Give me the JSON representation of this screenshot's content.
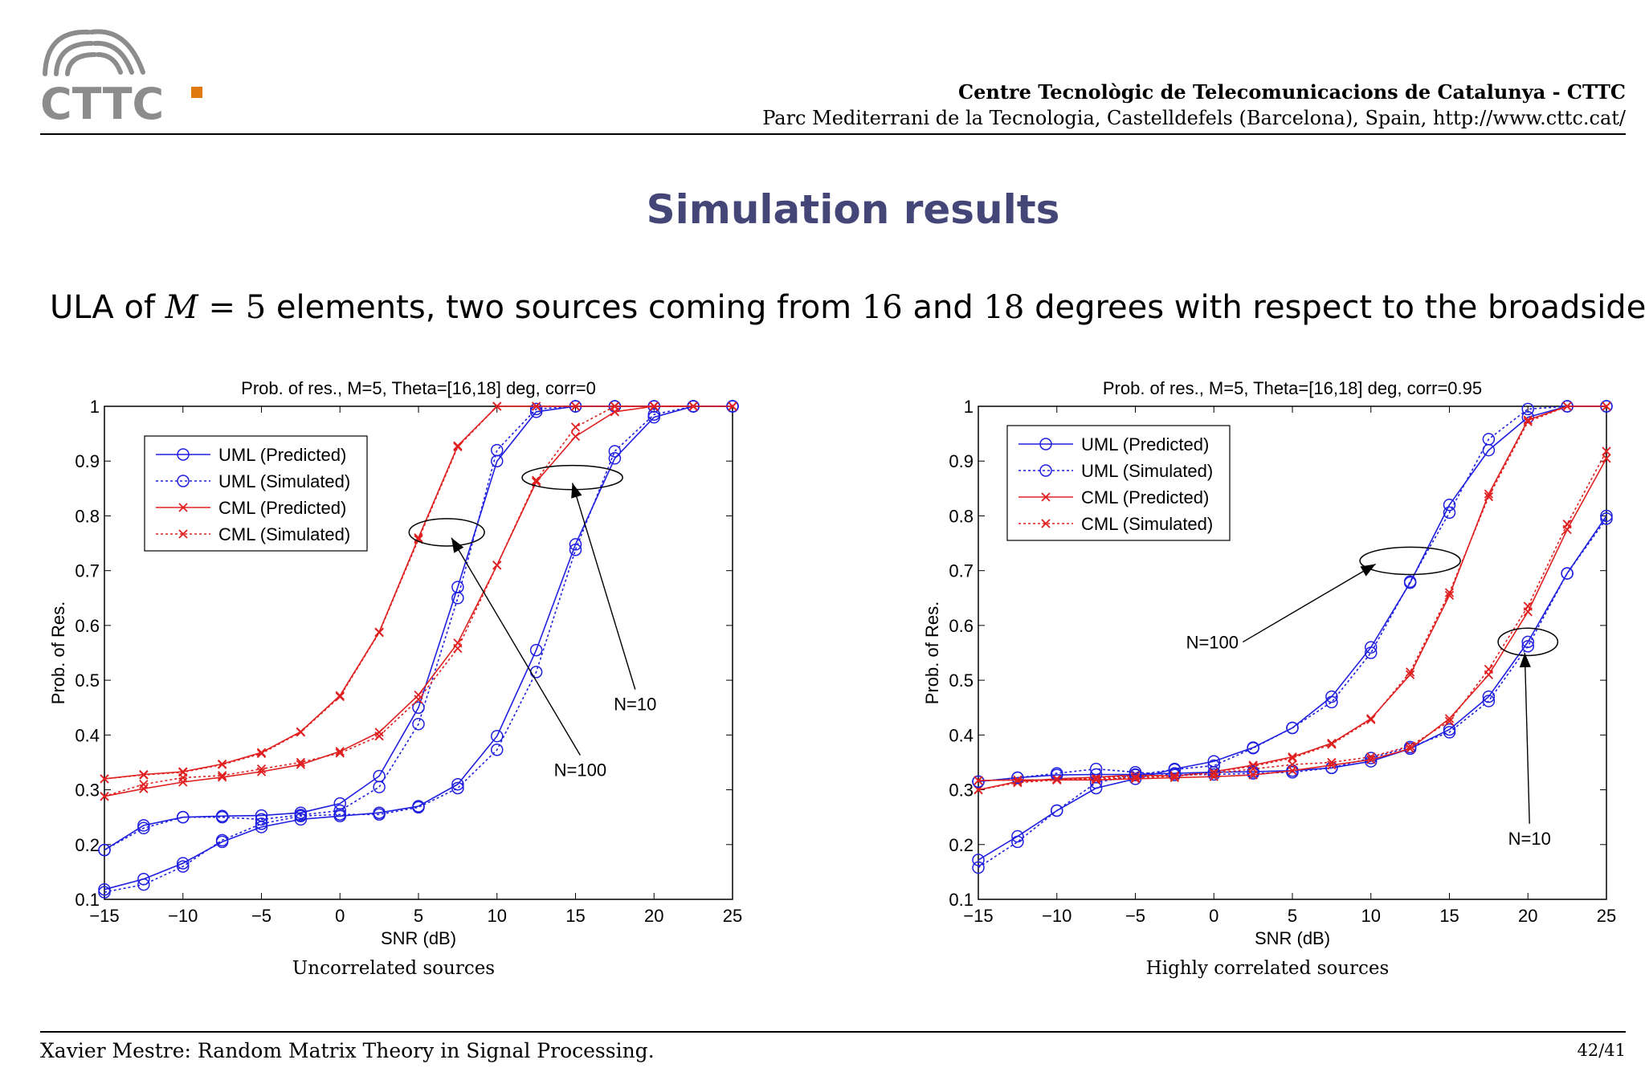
{
  "header": {
    "logo_text": "CTTC",
    "institution": "Centre Tecnològic de Telecomunicacions de Catalunya - CTTC",
    "address": "Parc Mediterrani de la Tecnologia, Castelldefels (Barcelona), Spain, http://www.cttc.cat/"
  },
  "slide": {
    "title": "Simulation results",
    "subtitle_parts": [
      "ULA of ",
      "M",
      " = 5",
      " elements, two sources coming from ",
      "16",
      " and ",
      "18",
      " degrees with respect to the broadside."
    ]
  },
  "captions": [
    "Uncorrelated sources",
    "Highly correlated sources"
  ],
  "footer": {
    "author": "Xavier Mestre: Random Matrix Theory in Signal Processing.",
    "page": "42/41"
  },
  "colors": {
    "blue": "#1f1fe0",
    "red": "#e02020",
    "title": "#434677"
  },
  "chart_data": [
    {
      "type": "line",
      "title": "Prob. of res., M=5, Theta=[16,18] deg, corr=0",
      "xlabel": "SNR (dB)",
      "ylabel": "Prob. of Res.",
      "xlim": [
        -15,
        25
      ],
      "ylim": [
        0.1,
        1
      ],
      "xticks": [
        -15,
        -10,
        -5,
        0,
        5,
        10,
        15,
        20,
        25
      ],
      "yticks": [
        0.1,
        0.2,
        0.3,
        0.4,
        0.5,
        0.6,
        0.7,
        0.8,
        0.9,
        1
      ],
      "grid": false,
      "legend_position": "top-left",
      "legend": [
        "UML (Predicted)",
        "UML (Simulated)",
        "CML (Predicted)",
        "CML (Simulated)"
      ],
      "x": [
        -15,
        -12.5,
        -10,
        -7.5,
        -5,
        -2.5,
        0,
        2.5,
        5,
        7.5,
        10,
        12.5,
        15,
        17.5,
        20,
        22.5,
        25
      ],
      "series": [
        {
          "name": "UML (Predicted)",
          "group": "N=100",
          "values": [
            0.19,
            0.235,
            0.25,
            0.252,
            0.253,
            0.258,
            0.275,
            0.325,
            0.45,
            0.67,
            0.9,
            0.99,
            1,
            1,
            1,
            1,
            1
          ]
        },
        {
          "name": "UML (Simulated)",
          "group": "N=100",
          "values": [
            0.19,
            0.23,
            0.25,
            0.25,
            0.246,
            0.254,
            0.262,
            0.305,
            0.42,
            0.65,
            0.92,
            0.995,
            1,
            1,
            1,
            1,
            1
          ]
        },
        {
          "name": "CML (Predicted)",
          "group": "N=100",
          "values": [
            0.32,
            0.328,
            0.333,
            0.347,
            0.368,
            0.406,
            0.472,
            0.588,
            0.76,
            0.928,
            1,
            1,
            1,
            1,
            1,
            1,
            1
          ]
        },
        {
          "name": "CML (Simulated)",
          "group": "N=100",
          "values": [
            0.32,
            0.327,
            0.332,
            0.346,
            0.366,
            0.405,
            0.47,
            0.587,
            0.757,
            0.926,
            1,
            1,
            1,
            1,
            1,
            1,
            1
          ]
        },
        {
          "name": "UML (Predicted)",
          "group": "N=10",
          "values": [
            0.118,
            0.137,
            0.166,
            0.205,
            0.232,
            0.246,
            0.252,
            0.258,
            0.27,
            0.31,
            0.398,
            0.555,
            0.748,
            0.905,
            0.98,
            1,
            1
          ]
        },
        {
          "name": "UML (Simulated)",
          "group": "N=10",
          "values": [
            0.113,
            0.127,
            0.16,
            0.208,
            0.238,
            0.252,
            0.255,
            0.255,
            0.268,
            0.303,
            0.373,
            0.515,
            0.738,
            0.918,
            0.985,
            1,
            1
          ]
        },
        {
          "name": "CML (Predicted)",
          "group": "N=10",
          "values": [
            0.288,
            0.302,
            0.314,
            0.323,
            0.333,
            0.346,
            0.37,
            0.405,
            0.473,
            0.568,
            0.71,
            0.862,
            0.945,
            0.99,
            1,
            1,
            1
          ]
        },
        {
          "name": "CML (Simulated)",
          "group": "N=10",
          "values": [
            0.288,
            0.31,
            0.322,
            0.326,
            0.338,
            0.35,
            0.367,
            0.398,
            0.465,
            0.558,
            0.71,
            0.865,
            0.962,
            1,
            1,
            1,
            1
          ]
        }
      ],
      "annotations": [
        {
          "text": "N=100",
          "at": [
            15.3,
            0.325
          ],
          "arrow_to": [
            7.1,
            0.76
          ],
          "ellipse": [
            6.8,
            0.77,
            2.4,
            0.025
          ]
        },
        {
          "text": "N=10",
          "at": [
            18.8,
            0.445
          ],
          "arrow_to": [
            14.8,
            0.86
          ],
          "ellipse": [
            14.8,
            0.87,
            3.2,
            0.022
          ]
        }
      ]
    },
    {
      "type": "line",
      "title": "Prob. of res., M=5, Theta=[16,18] deg, corr=0.95",
      "xlabel": "SNR (dB)",
      "ylabel": "Prob. of Res.",
      "xlim": [
        -15,
        25
      ],
      "ylim": [
        0.1,
        1
      ],
      "xticks": [
        -15,
        -10,
        -5,
        0,
        5,
        10,
        15,
        20,
        25
      ],
      "yticks": [
        0.1,
        0.2,
        0.3,
        0.4,
        0.5,
        0.6,
        0.7,
        0.8,
        0.9,
        1
      ],
      "grid": false,
      "legend_position": "top-left",
      "legend": [
        "UML (Predicted)",
        "UML (Simulated)",
        "CML (Predicted)",
        "CML (Simulated)"
      ],
      "x": [
        -15,
        -12.5,
        -10,
        -7.5,
        -5,
        -2.5,
        0,
        2.5,
        5,
        7.5,
        10,
        12.5,
        15,
        17.5,
        20,
        22.5,
        25
      ],
      "series": [
        {
          "name": "UML (Predicted)",
          "group": "N=100",
          "values": [
            0.172,
            0.215,
            0.262,
            0.303,
            0.32,
            0.338,
            0.352,
            0.377,
            0.413,
            0.47,
            0.56,
            0.678,
            0.82,
            0.92,
            0.98,
            1,
            1
          ]
        },
        {
          "name": "UML (Simulated)",
          "group": "N=100",
          "values": [
            0.158,
            0.205,
            0.262,
            0.313,
            0.327,
            0.337,
            0.344,
            0.376,
            0.413,
            0.46,
            0.55,
            0.68,
            0.806,
            0.94,
            0.995,
            1,
            1
          ]
        },
        {
          "name": "CML (Predicted)",
          "group": "N=100",
          "values": [
            0.3,
            0.315,
            0.32,
            0.323,
            0.327,
            0.325,
            0.333,
            0.345,
            0.36,
            0.385,
            0.43,
            0.51,
            0.655,
            0.84,
            0.975,
            1,
            1
          ]
        },
        {
          "name": "CML (Simulated)",
          "group": "N=100",
          "values": [
            0.3,
            0.313,
            0.318,
            0.322,
            0.325,
            0.326,
            0.332,
            0.343,
            0.358,
            0.383,
            0.428,
            0.515,
            0.66,
            0.835,
            0.972,
            1,
            1
          ]
        },
        {
          "name": "UML (Predicted)",
          "group": "N=10",
          "values": [
            0.315,
            0.322,
            0.327,
            0.328,
            0.328,
            0.33,
            0.332,
            0.333,
            0.335,
            0.34,
            0.352,
            0.375,
            0.41,
            0.47,
            0.57,
            0.695,
            0.8
          ]
        },
        {
          "name": "UML (Simulated)",
          "group": "N=10",
          "values": [
            0.315,
            0.322,
            0.33,
            0.338,
            0.332,
            0.327,
            0.328,
            0.33,
            0.332,
            0.34,
            0.358,
            0.378,
            0.405,
            0.462,
            0.562,
            0.695,
            0.795
          ]
        },
        {
          "name": "CML (Predicted)",
          "group": "N=10",
          "values": [
            0.317,
            0.318,
            0.318,
            0.318,
            0.32,
            0.322,
            0.324,
            0.327,
            0.335,
            0.345,
            0.355,
            0.375,
            0.43,
            0.51,
            0.625,
            0.775,
            0.905
          ]
        },
        {
          "name": "CML (Simulated)",
          "group": "N=10",
          "values": [
            0.317,
            0.318,
            0.318,
            0.32,
            0.322,
            0.325,
            0.33,
            0.338,
            0.346,
            0.35,
            0.36,
            0.38,
            0.425,
            0.52,
            0.635,
            0.785,
            0.918
          ]
        }
      ],
      "annotations": [
        {
          "text": "N=100",
          "at": [
            -0.1,
            0.558
          ],
          "arrow_to": [
            10.3,
            0.712
          ],
          "ellipse": [
            12.5,
            0.718,
            3.2,
            0.025
          ]
        },
        {
          "text": "N=10",
          "at": [
            20.1,
            0.2
          ],
          "arrow_to": [
            19.8,
            0.55
          ],
          "ellipse": [
            20.0,
            0.57,
            1.9,
            0.025
          ]
        }
      ]
    }
  ]
}
